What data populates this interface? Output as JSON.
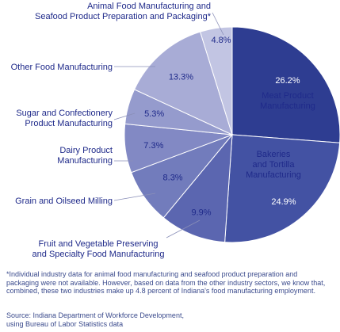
{
  "chart_data": {
    "type": "pie",
    "slices": [
      {
        "label": "Meat Product Manufacturing",
        "value": 26.2,
        "value_label": "26.2%",
        "color": "#2e3d91"
      },
      {
        "label": "Bakeries and Tortilla Manufacturing",
        "value": 24.9,
        "value_label": "24.9%",
        "color": "#4352a3"
      },
      {
        "label": "Fruit and Vegetable Preserving and Specialty Food Manufacturing",
        "value": 9.9,
        "value_label": "9.9%",
        "color": "#5b66b0"
      },
      {
        "label": "Grain and Oilseed Milling",
        "value": 8.3,
        "value_label": "8.3%",
        "color": "#727cbc"
      },
      {
        "label": "Dairy Product Manufacturing",
        "value": 7.3,
        "value_label": "7.3%",
        "color": "#8289c4"
      },
      {
        "label": "Sugar and Confectionery Product Manufacturing",
        "value": 5.3,
        "value_label": "5.3%",
        "color": "#959bcd"
      },
      {
        "label": "Other Food Manufacturing",
        "value": 13.3,
        "value_label": "13.3%",
        "color": "#a8acd6"
      },
      {
        "label": "Animal Food Manufacturing and Seafood Product Preparation and Packaging*",
        "value": 4.8,
        "value_label": "4.8%",
        "color": "#c2c5e3"
      }
    ],
    "callouts": {
      "meat": [
        "Meat Product",
        "Manufacturing"
      ],
      "bakeries": [
        "Bakeries",
        "and Tortilla",
        "Manufacturing"
      ],
      "fruit": [
        "Fruit and Vegetable Preserving",
        "and Specialty Food Manufacturing"
      ],
      "grain": [
        "Grain and Oilseed Milling"
      ],
      "dairy": [
        "Dairy Product",
        "Manufacturing"
      ],
      "sugar": [
        "Sugar and Confectionery",
        "Product Manufacturing"
      ],
      "other": [
        "Other Food Manufacturing"
      ],
      "animal": [
        "Animal Food Manufacturing and",
        "Seafood Product Preparation and Packaging*"
      ]
    }
  },
  "footnote": "*Individual industry data for animal food manufacturing and seafood product preparation and packaging were not available. However, based on data from the other industry sectors, we know that, combined, these two industries make up 4.8 percent of Indiana's food manufacturing employment.",
  "source": {
    "line1": "Source: Indiana Department of Workforce Development,",
    "line2": "using Bureau of Labor Statistics data"
  }
}
